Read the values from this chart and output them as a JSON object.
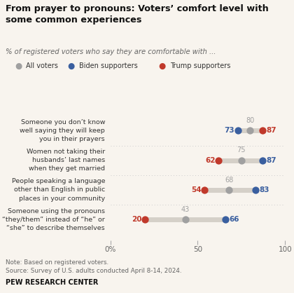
{
  "title": "From prayer to pronouns: Voters’ comfort level with\nsome common experiences",
  "subtitle": "% of registered voters who say they are comfortable with ...",
  "note": "Note: Based on registered voters.\nSource: Survey of U.S. adults conducted April 8-14, 2024.",
  "branding": "PEW RESEARCH CENTER",
  "legend": [
    "All voters",
    "Biden supporters",
    "Trump supporters"
  ],
  "legend_colors": [
    "#a0a0a0",
    "#3a5f9f",
    "#c0392b"
  ],
  "categories": [
    "Someone you don’t know\nwell saying they will keep\nyou in their prayers",
    "Women not taking their\nhusbands’ last names\nwhen they get married",
    "People speaking a language\nother than English in public\nplaces in your community",
    "Someone using the pronouns\n“they/them” instead of “he” or\n“she” to describe themselves"
  ],
  "all_voters": [
    80,
    75,
    68,
    43
  ],
  "biden_supporters": [
    73,
    87,
    83,
    66
  ],
  "trump_supporters": [
    87,
    62,
    54,
    20
  ],
  "xlim": [
    0,
    100
  ],
  "xticks": [
    0,
    50,
    100
  ],
  "xticklabels": [
    "0%",
    "50",
    "100"
  ],
  "background_color": "#f8f4ee",
  "bar_color": "#d5d0c8",
  "dot_color_all": "#a0a0a0",
  "dot_color_biden": "#3a5f9f",
  "dot_color_trump": "#c0392b"
}
